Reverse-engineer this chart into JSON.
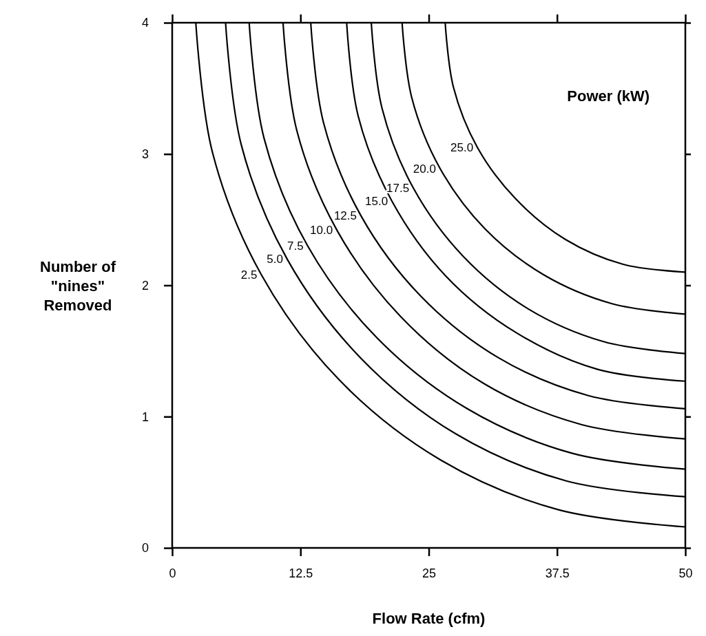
{
  "chart_data": {
    "type": "line",
    "xlabel": "Flow Rate (cfm)",
    "ylabel": "Number of \"nines\" Removed",
    "annotations": [
      "Power (kW)"
    ],
    "xlim": [
      0,
      50
    ],
    "xticks": [
      0,
      12.5,
      25,
      37.5,
      50
    ],
    "ylim": [
      0,
      4
    ],
    "yticks": [
      0,
      1,
      2,
      3,
      4
    ],
    "grid": false,
    "marker": "none",
    "line_style": "solid",
    "series": [
      {
        "name": "2.5",
        "color": "#000000",
        "x": [
          2.3,
          3.93,
          8.69,
          16.27,
          26.15,
          37.65,
          50
        ],
        "values": [
          4,
          3.01,
          2.08,
          1.28,
          0.67,
          0.29,
          0.16
        ]
      },
      {
        "name": "5.0",
        "color": "#000000",
        "x": [
          5.2,
          6.73,
          11.2,
          18.32,
          27.6,
          38.41,
          50
        ],
        "values": [
          4,
          3.07,
          2.2,
          1.45,
          0.87,
          0.51,
          0.39
        ]
      },
      {
        "name": "7.5",
        "color": "#000000",
        "x": [
          7.5,
          8.95,
          13.2,
          19.95,
          28.75,
          39.0,
          50
        ],
        "values": [
          4,
          3.12,
          2.3,
          1.6,
          1.06,
          0.72,
          0.6
        ]
      },
      {
        "name": "10.0",
        "color": "#000000",
        "x": [
          10.8,
          12.14,
          16.05,
          22.28,
          30.4,
          39.85,
          50
        ],
        "values": [
          4,
          3.18,
          2.42,
          1.76,
          1.25,
          0.94,
          0.83
        ]
      },
      {
        "name": "12.5",
        "color": "#000000",
        "x": [
          13.5,
          14.74,
          18.39,
          24.19,
          31.75,
          40.55,
          50
        ],
        "values": [
          4,
          3.24,
          2.53,
          1.92,
          1.45,
          1.16,
          1.06
        ]
      },
      {
        "name": "15.0",
        "color": "#000000",
        "x": [
          17.0,
          18.12,
          21.42,
          26.67,
          33.5,
          41.46,
          50
        ],
        "values": [
          4,
          3.29,
          2.64,
          2.07,
          1.64,
          1.36,
          1.27
        ]
      },
      {
        "name": "17.5",
        "color": "#000000",
        "x": [
          19.4,
          20.44,
          23.5,
          28.36,
          34.7,
          42.08,
          50
        ],
        "values": [
          4,
          3.35,
          2.74,
          2.22,
          1.82,
          1.57,
          1.48
        ]
      },
      {
        "name": "20.0",
        "color": "#000000",
        "x": [
          22.4,
          23.34,
          26.1,
          30.48,
          36.2,
          42.86,
          50
        ],
        "values": [
          4,
          3.43,
          2.89,
          2.43,
          2.08,
          1.86,
          1.78
        ]
      },
      {
        "name": "25.0",
        "color": "#000000",
        "x": [
          26.6,
          27.4,
          29.74,
          33.45,
          38.3,
          43.94,
          50
        ],
        "values": [
          4,
          3.51,
          3.05,
          2.66,
          2.35,
          2.16,
          2.1
        ]
      }
    ]
  }
}
